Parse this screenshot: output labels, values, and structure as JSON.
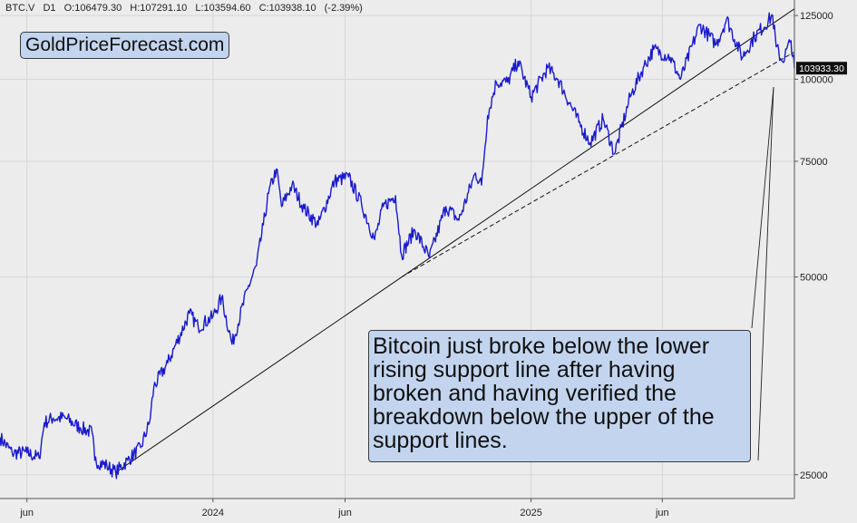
{
  "header": {
    "symbol": "BTC.V",
    "interval": "D1",
    "open": "O:106479.30",
    "high": "H:107291.10",
    "low": "L:103594.60",
    "close": "C:103938.10",
    "change": "(-2.39%)"
  },
  "logo": "GoldPriceForecast.com",
  "annotation": "Bitcoin just broke below the lower rising support line after having broken and having verified the breakdown below the upper of the support lines.",
  "colors": {
    "price": "#1a1acc",
    "background": "#ececec",
    "box": "#c3d5ee",
    "last_price_bg": "#111111"
  },
  "chart_data": {
    "type": "line",
    "y_scale": "log",
    "ylim": [
      23000,
      132000
    ],
    "xlim": [
      "2023-05-01",
      "2025-10-31"
    ],
    "grid": true,
    "y_ticks": [
      "125000",
      "100000",
      "75000",
      "50000",
      "25000"
    ],
    "x_ticks": [
      {
        "date": "2023-06-01",
        "label": "jun"
      },
      {
        "date": "2024-01-01",
        "label": "2024"
      },
      {
        "date": "2024-06-01",
        "label": "jun"
      },
      {
        "date": "2025-01-01",
        "label": "2025"
      },
      {
        "date": "2025-06-01",
        "label": "jun"
      }
    ],
    "last_price": 103933.3,
    "last_price_label": "103933.30",
    "series": [
      {
        "x": [
          "2023-05-01",
          "2023-05-15",
          "2023-06-01",
          "2023-06-15",
          "2023-06-21",
          "2023-07-01",
          "2023-07-15",
          "2023-08-01",
          "2023-08-15",
          "2023-08-18",
          "2023-09-01",
          "2023-09-11",
          "2023-09-25",
          "2023-10-10",
          "2023-10-20",
          "2023-10-25",
          "2023-11-10",
          "2023-12-05",
          "2023-12-15",
          "2024-01-01",
          "2024-01-11",
          "2024-01-23",
          "2024-02-10",
          "2024-02-20",
          "2024-02-28",
          "2024-03-05",
          "2024-03-14",
          "2024-03-20",
          "2024-04-01",
          "2024-04-15",
          "2024-05-01",
          "2024-05-20",
          "2024-06-05",
          "2024-06-20",
          "2024-07-05",
          "2024-07-15",
          "2024-07-29",
          "2024-08-05",
          "2024-08-20",
          "2024-09-06",
          "2024-09-25",
          "2024-10-10",
          "2024-10-29",
          "2024-11-05",
          "2024-11-12",
          "2024-11-22",
          "2024-12-05",
          "2024-12-17",
          "2025-01-01",
          "2025-01-20",
          "2025-02-01",
          "2025-02-25",
          "2025-03-10",
          "2025-03-25",
          "2025-04-07",
          "2025-04-25",
          "2025-05-10",
          "2025-05-22",
          "2025-06-10",
          "2025-06-22",
          "2025-07-14",
          "2025-08-02",
          "2025-08-14",
          "2025-09-01",
          "2025-09-15",
          "2025-10-06",
          "2025-10-10",
          "2025-10-17",
          "2025-10-27",
          "2025-10-31"
        ],
        "y": [
          28500,
          27000,
          27000,
          26500,
          30000,
          30500,
          30500,
          29500,
          29000,
          26300,
          25800,
          25200,
          26300,
          27500,
          30000,
          34000,
          37000,
          44000,
          42000,
          43500,
          46500,
          39500,
          48000,
          52000,
          60000,
          67000,
          73000,
          64000,
          69000,
          63500,
          60000,
          70000,
          71000,
          64500,
          57000,
          64000,
          66500,
          54000,
          59000,
          53500,
          64000,
          61000,
          72000,
          69000,
          88000,
          99000,
          99000,
          106500,
          94000,
          104000,
          100000,
          86000,
          80000,
          87000,
          77000,
          94000,
          104000,
          111000,
          108000,
          100000,
          121000,
          113000,
          123500,
          108000,
          116000,
          125000,
          112000,
          106500,
          114500,
          103933
        ]
      }
    ],
    "support_lines": [
      {
        "style": "solid",
        "from": {
          "date": "2023-09-11",
          "value": 25200
        },
        "to": {
          "date": "2025-10-31",
          "value": 128000
        }
      },
      {
        "style": "dashed",
        "from": {
          "date": "2024-08-05",
          "value": 50000
        },
        "to": {
          "date": "2025-10-31",
          "value": 110000
        }
      }
    ]
  }
}
